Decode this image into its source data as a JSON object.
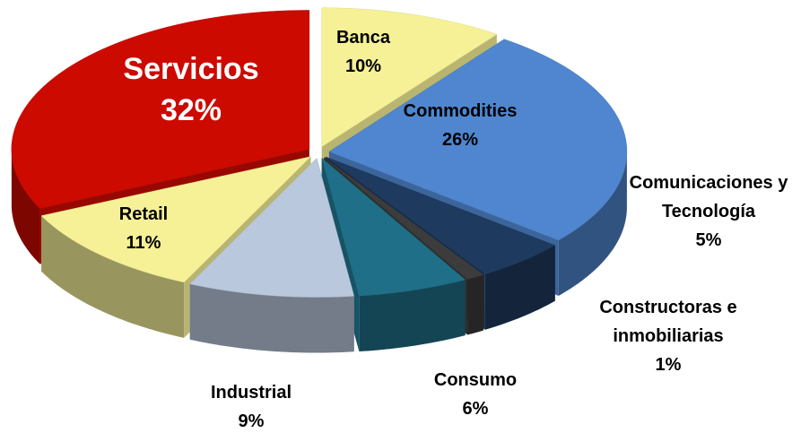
{
  "chart_data": {
    "type": "pie",
    "categories": [
      "Banca",
      "Commodities",
      "Comunicaciones y Tecnología",
      "Constructoras e inmobiliarias",
      "Consumo",
      "Industrial",
      "Retail",
      "Servicios"
    ],
    "values": [
      10,
      26,
      5,
      1,
      6,
      9,
      11,
      32
    ],
    "value_labels": [
      "10%",
      "26%",
      "5%",
      "1%",
      "6%",
      "9%",
      "11%",
      "32%"
    ],
    "colors": [
      "#f6f197",
      "#4f86cf",
      "#1f3a5f",
      "#3c3c3c",
      "#1e6f87",
      "#b9c8dc",
      "#f6f197",
      "#cc0a00"
    ]
  }
}
